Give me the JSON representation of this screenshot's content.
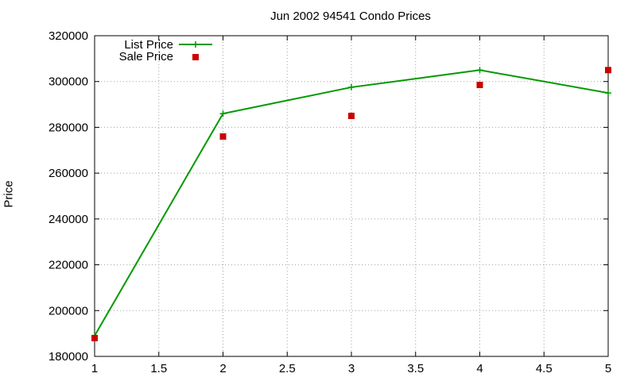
{
  "chart_data": {
    "type": "line",
    "title": "Jun 2002 94541 Condo Prices",
    "xlabel": "",
    "ylabel": "Price",
    "xlim": [
      1,
      5
    ],
    "ylim": [
      180000,
      320000
    ],
    "x_ticks": [
      "1",
      "1.5",
      "2",
      "2.5",
      "3",
      "3.5",
      "4",
      "4.5",
      "5"
    ],
    "y_ticks": [
      "180000",
      "200000",
      "220000",
      "240000",
      "260000",
      "280000",
      "300000",
      "320000"
    ],
    "grid": true,
    "legend_position": "top-left",
    "series": [
      {
        "name": "List Price",
        "style": "line-with-plus-markers",
        "color": "#009900",
        "x": [
          1,
          2,
          3,
          4,
          5
        ],
        "values": [
          189000,
          286000,
          297500,
          305000,
          295000
        ]
      },
      {
        "name": "Sale Price",
        "style": "square-points",
        "color": "#cc0000",
        "x": [
          1,
          2,
          3,
          4,
          5
        ],
        "values": [
          188000,
          276000,
          285000,
          298500,
          305000
        ]
      }
    ]
  }
}
